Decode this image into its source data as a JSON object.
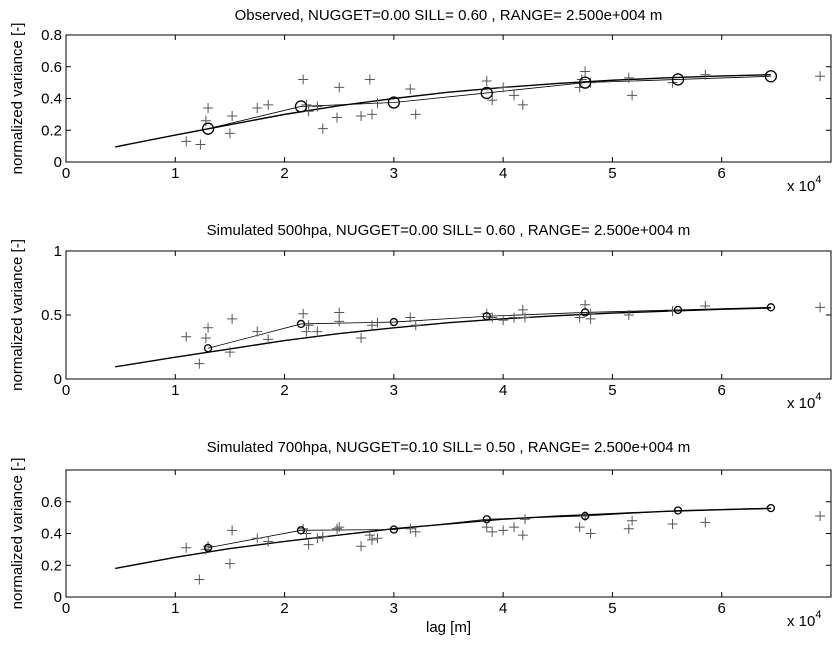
{
  "figure": {
    "xlabel": "lag [m]",
    "ylabel": "normalized variance [-]",
    "x_multiplier_base": "x 10",
    "x_multiplier_exp": "4"
  },
  "chart_data": [
    {
      "type": "scatter",
      "title": "Observed, NUGGET=0.00 SILL= 0.60 , RANGE= 2.500e+004 m",
      "xlabel": "",
      "ylabel": "normalized variance [-]",
      "x_scale": 10000,
      "xlim": [
        0,
        7
      ],
      "ylim": [
        0,
        0.8
      ],
      "xticks": [
        0,
        1,
        2,
        3,
        4,
        5,
        6
      ],
      "yticks": [
        0,
        0.2,
        0.4,
        0.6,
        0.8
      ],
      "ytick_labels": [
        "0",
        "0.2",
        "0.4",
        "0.6",
        "0.8"
      ],
      "grid": false,
      "circle_size": "large",
      "series": [
        {
          "kind": "pairs",
          "marker": "+",
          "x": [
            1.1,
            1.23,
            1.28,
            1.3,
            1.5,
            1.52,
            1.75,
            1.85,
            2.17,
            2.2,
            2.22,
            2.3,
            2.35,
            2.48,
            2.5,
            2.7,
            2.78,
            2.8,
            2.85,
            3.15,
            3.2,
            3.85,
            3.9,
            4.0,
            4.1,
            4.18,
            4.7,
            4.72,
            4.75,
            4.8,
            5.15,
            5.18,
            5.55,
            5.85,
            6.9
          ],
          "y": [
            0.13,
            0.11,
            0.26,
            0.34,
            0.18,
            0.29,
            0.34,
            0.36,
            0.52,
            0.36,
            0.32,
            0.35,
            0.21,
            0.28,
            0.47,
            0.29,
            0.52,
            0.3,
            0.37,
            0.46,
            0.3,
            0.51,
            0.39,
            0.47,
            0.42,
            0.36,
            0.47,
            0.52,
            0.57,
            0.5,
            0.53,
            0.42,
            0.5,
            0.55,
            0.54
          ]
        },
        {
          "kind": "empirical",
          "marker": "o",
          "x": [
            1.3,
            2.15,
            3.0,
            3.85,
            4.75,
            5.6,
            6.45
          ],
          "y": [
            0.21,
            0.35,
            0.375,
            0.435,
            0.5,
            0.52,
            0.54
          ]
        },
        {
          "kind": "model",
          "x": [
            0.45,
            1.0,
            1.5,
            2.0,
            2.5,
            3.0,
            3.5,
            4.0,
            4.5,
            5.0,
            5.5,
            6.0,
            6.45
          ],
          "y": [
            0.095,
            0.17,
            0.235,
            0.3,
            0.355,
            0.4,
            0.44,
            0.47,
            0.495,
            0.515,
            0.53,
            0.542,
            0.55
          ]
        }
      ]
    },
    {
      "type": "scatter",
      "title": "Simulated 500hpa, NUGGET=0.00 SILL= 0.60 , RANGE= 2.500e+004 m",
      "xlabel": "",
      "ylabel": "normalized variance [-]",
      "x_scale": 10000,
      "xlim": [
        0,
        7
      ],
      "ylim": [
        0,
        1
      ],
      "xticks": [
        0,
        1,
        2,
        3,
        4,
        5,
        6
      ],
      "yticks": [
        0,
        0.5,
        1
      ],
      "ytick_labels": [
        "0",
        "0.5",
        "1"
      ],
      "grid": false,
      "circle_size": "small",
      "series": [
        {
          "kind": "pairs",
          "marker": "+",
          "x": [
            1.1,
            1.22,
            1.28,
            1.3,
            1.5,
            1.52,
            1.75,
            1.85,
            2.17,
            2.2,
            2.22,
            2.3,
            2.5,
            2.5,
            2.7,
            2.8,
            2.85,
            3.15,
            3.2,
            3.85,
            3.9,
            4.0,
            4.1,
            4.18,
            4.2,
            4.7,
            4.75,
            4.8,
            4.8,
            5.15,
            5.55,
            5.85,
            6.9
          ],
          "y": [
            0.33,
            0.12,
            0.32,
            0.4,
            0.21,
            0.47,
            0.37,
            0.31,
            0.51,
            0.37,
            0.42,
            0.37,
            0.45,
            0.52,
            0.32,
            0.42,
            0.44,
            0.48,
            0.42,
            0.51,
            0.48,
            0.46,
            0.48,
            0.54,
            0.48,
            0.48,
            0.58,
            0.47,
            0.51,
            0.5,
            0.53,
            0.57,
            0.56
          ]
        },
        {
          "kind": "empirical",
          "marker": "o",
          "x": [
            1.3,
            2.15,
            3.0,
            3.85,
            4.75,
            5.6,
            6.45
          ],
          "y": [
            0.24,
            0.43,
            0.445,
            0.49,
            0.52,
            0.54,
            0.56
          ]
        },
        {
          "kind": "model",
          "x": [
            0.45,
            1.0,
            1.5,
            2.0,
            2.5,
            3.0,
            3.5,
            4.0,
            4.5,
            5.0,
            5.5,
            6.0,
            6.45
          ],
          "y": [
            0.095,
            0.17,
            0.235,
            0.3,
            0.355,
            0.4,
            0.44,
            0.47,
            0.495,
            0.515,
            0.53,
            0.545,
            0.555
          ]
        }
      ]
    },
    {
      "type": "scatter",
      "title": "Simulated 700hpa, NUGGET=0.10 SILL= 0.50 , RANGE= 2.500e+004 m",
      "xlabel": "lag [m]",
      "ylabel": "normalized variance [-]",
      "x_scale": 10000,
      "xlim": [
        0,
        7
      ],
      "ylim": [
        0,
        0.8
      ],
      "xticks": [
        0,
        1,
        2,
        3,
        4,
        5,
        6
      ],
      "yticks": [
        0,
        0.2,
        0.4,
        0.6
      ],
      "ytick_labels": [
        "0",
        "0.2",
        "0.4",
        "0.6"
      ],
      "grid": false,
      "circle_size": "small",
      "series": [
        {
          "kind": "pairs",
          "marker": "+",
          "x": [
            1.1,
            1.22,
            1.28,
            1.3,
            1.5,
            1.52,
            1.75,
            1.85,
            2.17,
            2.2,
            2.22,
            2.3,
            2.35,
            2.48,
            2.5,
            2.7,
            2.78,
            2.8,
            2.85,
            3.15,
            3.2,
            3.85,
            3.9,
            4.0,
            4.1,
            4.18,
            4.2,
            4.7,
            4.75,
            4.8,
            5.15,
            5.18,
            5.55,
            5.85,
            6.9
          ],
          "y": [
            0.31,
            0.11,
            0.3,
            0.32,
            0.21,
            0.42,
            0.37,
            0.35,
            0.43,
            0.4,
            0.33,
            0.37,
            0.38,
            0.43,
            0.44,
            0.32,
            0.39,
            0.36,
            0.37,
            0.43,
            0.41,
            0.44,
            0.41,
            0.42,
            0.44,
            0.39,
            0.49,
            0.44,
            0.51,
            0.4,
            0.43,
            0.48,
            0.46,
            0.47,
            0.51
          ]
        },
        {
          "kind": "empirical",
          "marker": "o",
          "x": [
            1.3,
            2.15,
            3.0,
            3.85,
            4.75,
            5.6,
            6.45
          ],
          "y": [
            0.31,
            0.42,
            0.425,
            0.49,
            0.51,
            0.545,
            0.56
          ]
        },
        {
          "kind": "model",
          "x": [
            0.45,
            1.0,
            1.5,
            2.0,
            2.5,
            3.0,
            3.5,
            4.0,
            4.5,
            5.0,
            5.5,
            6.0,
            6.45
          ],
          "y": [
            0.18,
            0.25,
            0.305,
            0.35,
            0.39,
            0.43,
            0.46,
            0.49,
            0.51,
            0.525,
            0.54,
            0.55,
            0.558
          ]
        }
      ]
    }
  ]
}
